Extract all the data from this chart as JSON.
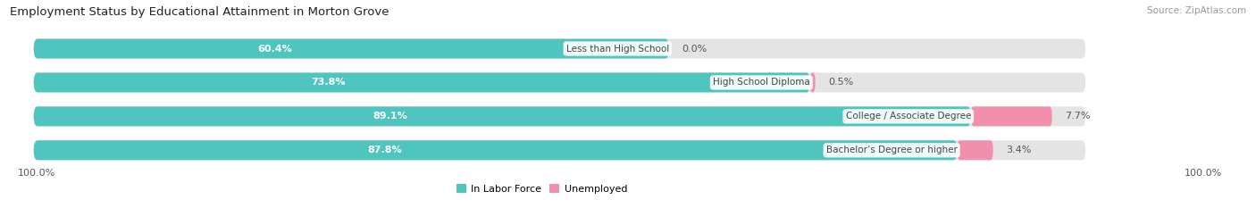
{
  "title": "Employment Status by Educational Attainment in Morton Grove",
  "source": "Source: ZipAtlas.com",
  "categories": [
    "Less than High School",
    "High School Diploma",
    "College / Associate Degree",
    "Bachelor’s Degree or higher"
  ],
  "labor_force": [
    60.4,
    73.8,
    89.1,
    87.8
  ],
  "unemployed": [
    0.0,
    0.5,
    7.7,
    3.4
  ],
  "color_labor": "#4EC5BE",
  "color_unemployed": "#F28FAD",
  "color_bg_bar": "#E4E4E4",
  "axis_label_left": "100.0%",
  "axis_label_right": "100.0%",
  "legend_labor": "In Labor Force",
  "legend_unemployed": "Unemployed",
  "fig_width": 14.06,
  "fig_height": 2.33,
  "title_fontsize": 9.5,
  "source_fontsize": 7.5,
  "bar_label_fontsize": 8,
  "cat_label_fontsize": 7.5,
  "pct_label_fontsize": 8
}
